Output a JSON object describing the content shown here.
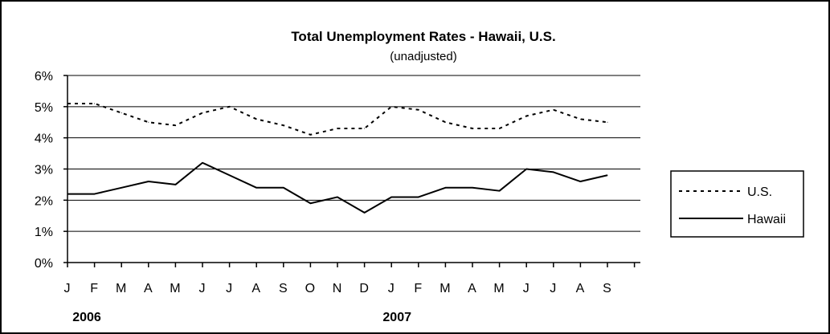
{
  "chart_data": {
    "type": "line",
    "title": "Total Unemployment Rates - Hawaii, U.S.",
    "subtitle": "(unadjusted)",
    "xlabel": "",
    "ylabel": "",
    "ylim": [
      0,
      6
    ],
    "y_ticks": [
      "0%",
      "1%",
      "2%",
      "3%",
      "4%",
      "5%",
      "6%"
    ],
    "categories": [
      "J",
      "F",
      "M",
      "A",
      "M",
      "J",
      "J",
      "A",
      "S",
      "O",
      "N",
      "D",
      "J",
      "F",
      "M",
      "A",
      "M",
      "J",
      "J",
      "A",
      "S"
    ],
    "year_labels": [
      {
        "label": "2006",
        "category_index": 0
      },
      {
        "label": "2007",
        "category_index": 12
      }
    ],
    "grid": true,
    "legend_position": "right",
    "series": [
      {
        "name": "U.S.",
        "style": "dashed",
        "color": "#000000",
        "values": [
          5.1,
          5.1,
          4.8,
          4.5,
          4.4,
          4.8,
          5.0,
          4.6,
          4.4,
          4.1,
          4.3,
          4.3,
          5.0,
          4.9,
          4.5,
          4.3,
          4.3,
          4.7,
          4.9,
          4.6,
          4.5
        ]
      },
      {
        "name": "Hawaii",
        "style": "solid",
        "color": "#000000",
        "values": [
          2.2,
          2.2,
          2.4,
          2.6,
          2.5,
          3.2,
          2.8,
          2.4,
          2.4,
          1.9,
          2.1,
          1.6,
          2.1,
          2.1,
          2.4,
          2.4,
          2.3,
          3.0,
          2.9,
          2.6,
          2.8
        ]
      }
    ]
  }
}
